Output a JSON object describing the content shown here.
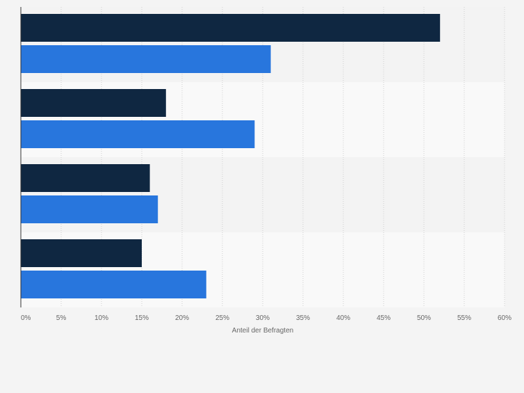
{
  "chart_data": {
    "type": "bar",
    "orientation": "horizontal",
    "categories": [
      "",
      "",
      "",
      ""
    ],
    "series": [
      {
        "values": [
          52,
          18,
          16,
          15
        ],
        "color": "#0f2741"
      },
      {
        "values": [
          31,
          29,
          17,
          23
        ],
        "color": "#2876dd"
      }
    ],
    "xlabel": "Anteil der Befragten",
    "xlim": [
      0,
      60
    ],
    "x_ticks": [
      "0%",
      "5%",
      "10%",
      "15%",
      "20%",
      "25%",
      "30%",
      "35%",
      "40%",
      "45%",
      "50%",
      "55%",
      "60%"
    ],
    "grid": true,
    "legend": "none"
  }
}
